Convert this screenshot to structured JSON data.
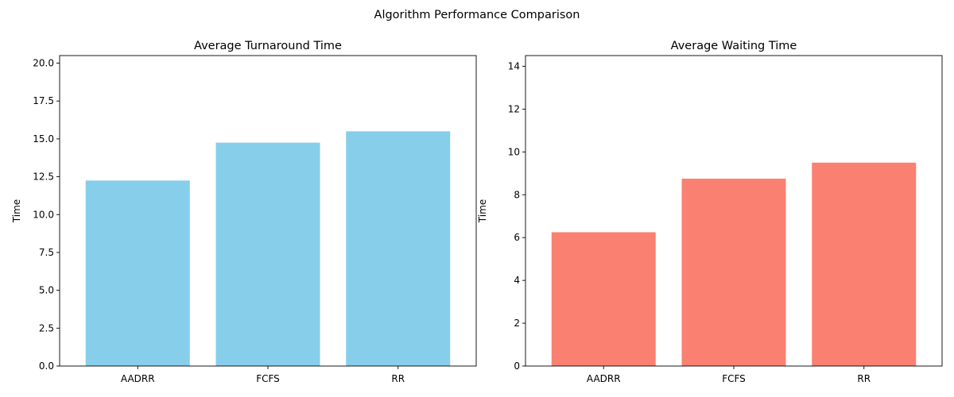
{
  "figure": {
    "suptitle": "Algorithm Performance Comparison"
  },
  "chart_data": [
    {
      "type": "bar",
      "title": "Average Turnaround Time",
      "xlabel": "",
      "ylabel": "Time",
      "categories": [
        "AADRR",
        "FCFS",
        "RR"
      ],
      "values": [
        12.25,
        14.75,
        15.5
      ],
      "ylim": [
        0,
        20.5
      ],
      "yticks": [
        0,
        2.5,
        5,
        7.5,
        10,
        12.5,
        15,
        17.5,
        20
      ],
      "ytick_labels": [
        "0.0",
        "2.5",
        "5.0",
        "7.5",
        "10.0",
        "12.5",
        "15.0",
        "17.5",
        "20.0"
      ],
      "color": "#87CEEB",
      "grid": false
    },
    {
      "type": "bar",
      "title": "Average Waiting Time",
      "xlabel": "",
      "ylabel": "Time",
      "categories": [
        "AADRR",
        "FCFS",
        "RR"
      ],
      "values": [
        6.25,
        8.75,
        9.5
      ],
      "ylim": [
        0,
        14.5
      ],
      "yticks": [
        0,
        2,
        4,
        6,
        8,
        10,
        12,
        14
      ],
      "ytick_labels": [
        "0",
        "2",
        "4",
        "6",
        "8",
        "10",
        "12",
        "14"
      ],
      "color": "#FA8072",
      "grid": false
    }
  ]
}
